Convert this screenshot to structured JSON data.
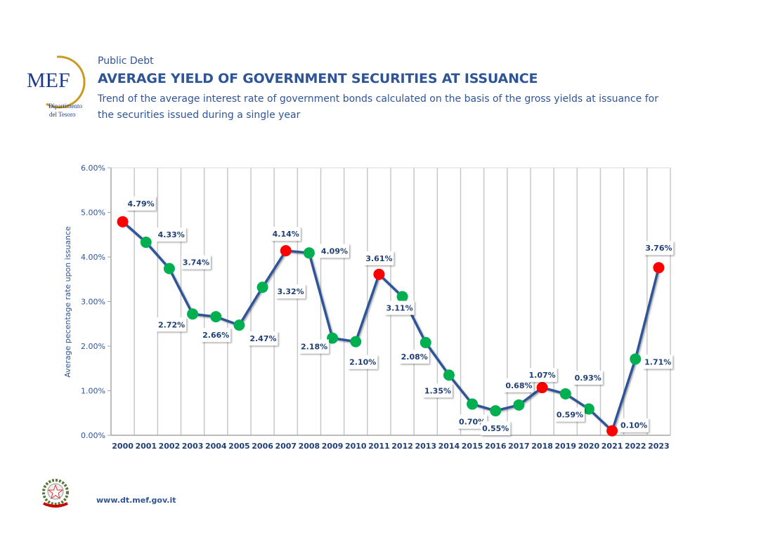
{
  "header": {
    "logo_text": "MEF",
    "logo_caption": [
      "Dipartimento",
      "del Tesoro"
    ],
    "section": "Public Debt",
    "title": "AVERAGE YIELD OF GOVERNMENT SECURITIES AT ISSUANCE",
    "subtitle": "Trend of the average interest rate of government bonds calculated on the basis of the gross yields at issuance for the securities issued during a single year"
  },
  "footer": {
    "url": "www.dt.mef.gov.it"
  },
  "chart_data": {
    "type": "line",
    "title": "",
    "xlabel": "",
    "ylabel": "Average pecentage rate upon issuance",
    "ylim": [
      0,
      6
    ],
    "yticks": [
      "0.00%",
      "1.00%",
      "2.00%",
      "3.00%",
      "4.00%",
      "5.00%",
      "6.00%"
    ],
    "grid": "vertical",
    "categories": [
      "2000",
      "2001",
      "2002",
      "2003",
      "2004",
      "2005",
      "2006",
      "2007",
      "2008",
      "2009",
      "2010",
      "2011",
      "2012",
      "2013",
      "2014",
      "2015",
      "2016",
      "2017",
      "2018",
      "2019",
      "2020",
      "2021",
      "2022",
      "2023"
    ],
    "values": [
      4.79,
      4.33,
      3.74,
      2.72,
      2.66,
      2.47,
      3.32,
      4.14,
      4.09,
      2.18,
      2.1,
      3.61,
      3.11,
      2.08,
      1.35,
      0.7,
      0.55,
      0.68,
      1.07,
      0.93,
      0.59,
      0.1,
      1.71,
      3.76
    ],
    "data_labels": [
      "4.79%",
      "4.33%",
      "3.74%",
      "2.72%",
      "2.66%",
      "2.47%",
      "3.32%",
      "4.14%",
      "4.09%",
      "2.18%",
      "2.10%",
      "3.61%",
      "3.11%",
      "2.08%",
      "1.35%",
      "0.70%",
      "0.55%",
      "0.68%",
      "1.07%",
      "0.93%",
      "0.59%",
      "0.10%",
      "1.71%",
      "3.76%"
    ],
    "point_colors": [
      "red",
      "green",
      "green",
      "green",
      "green",
      "green",
      "green",
      "red",
      "green",
      "green",
      "green",
      "red",
      "green",
      "green",
      "green",
      "green",
      "green",
      "green",
      "red",
      "green",
      "green",
      "red",
      "green",
      "red"
    ],
    "colors": {
      "line": "#2f5597",
      "red": "#ff0000",
      "green": "#00b050"
    }
  }
}
